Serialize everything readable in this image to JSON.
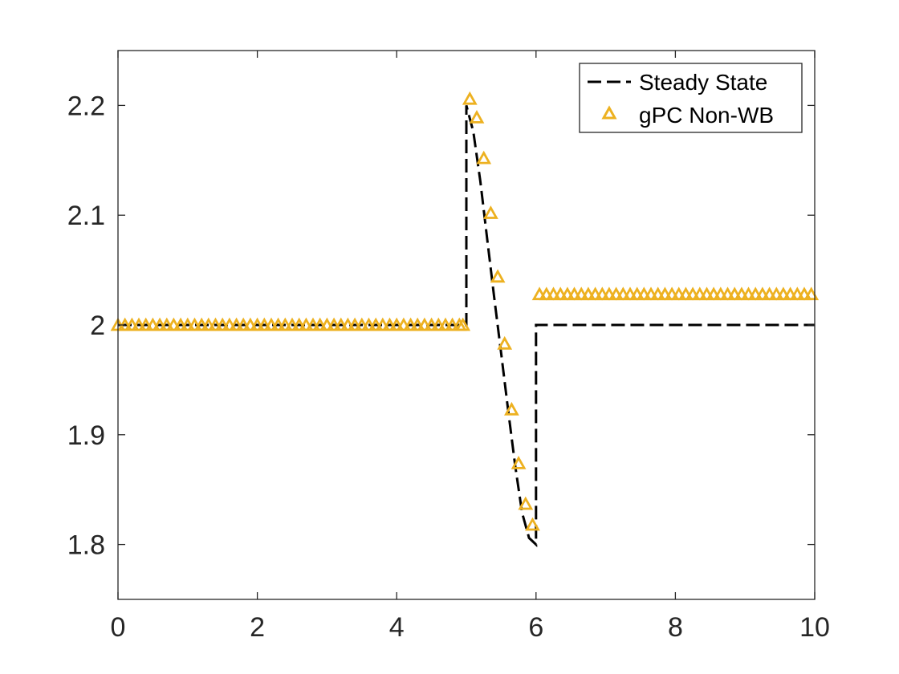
{
  "chart_data": {
    "type": "line",
    "title": "",
    "xlabel": "",
    "ylabel": "",
    "xlim": [
      0,
      10
    ],
    "ylim": [
      1.75,
      2.25
    ],
    "xticks": [
      0,
      2,
      4,
      6,
      8,
      10
    ],
    "xtick_labels": [
      "0",
      "2",
      "4",
      "6",
      "8",
      "10"
    ],
    "yticks": [
      1.8,
      1.9,
      2.0,
      2.1,
      2.2
    ],
    "ytick_labels": [
      "1.8",
      "1.9",
      "2",
      "2.1",
      "2.2"
    ],
    "grid": false,
    "legend_position": "top-right",
    "series": [
      {
        "name": "Steady State",
        "style": "dashed-line",
        "color": "#000000",
        "x": [
          0,
          5,
          5,
          5.1,
          5.2,
          5.3,
          5.4,
          5.5,
          5.6,
          5.7,
          5.8,
          5.9,
          6,
          6,
          10
        ],
        "y": [
          2.0,
          2.0,
          2.2,
          2.176,
          2.131,
          2.078,
          2.025,
          1.974,
          1.922,
          1.872,
          1.829,
          1.806,
          1.8,
          2.0,
          2.0
        ]
      },
      {
        "name": "gPC Non-WB",
        "style": "triangle-markers",
        "color": "#EDB120",
        "x": [
          0,
          0.1,
          0.2,
          0.3,
          0.4,
          0.5,
          0.6,
          0.7,
          0.8,
          0.9,
          1.0,
          1.1,
          1.2,
          1.3,
          1.4,
          1.5,
          1.6,
          1.7,
          1.8,
          1.9,
          2.0,
          2.1,
          2.2,
          2.3,
          2.4,
          2.5,
          2.6,
          2.7,
          2.8,
          2.9,
          3.0,
          3.1,
          3.2,
          3.3,
          3.4,
          3.5,
          3.6,
          3.7,
          3.8,
          3.9,
          4.0,
          4.1,
          4.2,
          4.3,
          4.4,
          4.5,
          4.6,
          4.7,
          4.8,
          4.9,
          4.95,
          5.05,
          5.15,
          5.25,
          5.35,
          5.45,
          5.55,
          5.65,
          5.75,
          5.85,
          5.95,
          6.05,
          6.15,
          6.25,
          6.35,
          6.45,
          6.55,
          6.65,
          6.75,
          6.85,
          6.95,
          7.05,
          7.15,
          7.25,
          7.35,
          7.45,
          7.55,
          7.65,
          7.75,
          7.85,
          7.95,
          8.05,
          8.15,
          8.25,
          8.35,
          8.45,
          8.55,
          8.65,
          8.75,
          8.85,
          8.95,
          9.05,
          9.15,
          9.25,
          9.35,
          9.45,
          9.55,
          9.65,
          9.75,
          9.85,
          9.95
        ],
        "y": [
          2.0,
          2.0,
          2.0,
          2.0,
          2.0,
          2.0,
          2.0,
          2.0,
          2.0,
          2.0,
          2.0,
          2.0,
          2.0,
          2.0,
          2.0,
          2.0,
          2.0,
          2.0,
          2.0,
          2.0,
          2.0,
          2.0,
          2.0,
          2.0,
          2.0,
          2.0,
          2.0,
          2.0,
          2.0,
          2.0,
          2.0,
          2.0,
          2.0,
          2.0,
          2.0,
          2.0,
          2.0,
          2.0,
          2.0,
          2.0,
          2.0,
          2.0,
          2.0,
          2.0,
          2.0,
          2.0,
          2.0,
          2.0,
          2.0,
          2.0,
          2.0,
          2.206,
          2.189,
          2.152,
          2.102,
          2.044,
          1.983,
          1.923,
          1.874,
          1.837,
          1.818,
          2.028,
          2.028,
          2.028,
          2.028,
          2.028,
          2.028,
          2.028,
          2.028,
          2.028,
          2.028,
          2.028,
          2.028,
          2.028,
          2.028,
          2.028,
          2.028,
          2.028,
          2.028,
          2.028,
          2.028,
          2.028,
          2.028,
          2.028,
          2.028,
          2.028,
          2.028,
          2.028,
          2.028,
          2.028,
          2.028,
          2.028,
          2.028,
          2.028,
          2.028,
          2.028,
          2.028,
          2.028,
          2.028,
          2.028,
          2.028
        ]
      }
    ]
  }
}
